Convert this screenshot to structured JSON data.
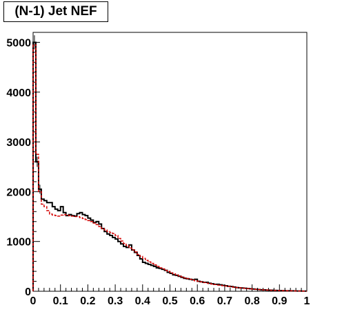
{
  "chart_data": {
    "type": "line",
    "title": "(N-1) Jet NEF",
    "xlabel": "",
    "ylabel": "",
    "xlim": [
      0,
      1
    ],
    "ylim": [
      0,
      5200
    ],
    "grid": false,
    "x_ticks": [
      "0",
      "0.1",
      "0.2",
      "0.3",
      "0.4",
      "0.5",
      "0.6",
      "0.7",
      "0.8",
      "0.9",
      "1"
    ],
    "y_ticks": [
      "0",
      "1000",
      "2000",
      "3000",
      "4000",
      "5000"
    ],
    "bin_width": 0.01,
    "series": [
      {
        "color": "#000000",
        "style": "solid",
        "values": [
          5000,
          2600,
          2050,
          1850,
          1820,
          1780,
          1780,
          1700,
          1650,
          1620,
          1700,
          1580,
          1520,
          1540,
          1520,
          1510,
          1560,
          1580,
          1540,
          1520,
          1470,
          1430,
          1380,
          1400,
          1350,
          1260,
          1200,
          1150,
          1120,
          1080,
          1050,
          1000,
          950,
          900,
          880,
          930,
          830,
          780,
          720,
          650,
          580,
          560,
          540,
          520,
          500,
          470,
          460,
          440,
          420,
          380,
          360,
          330,
          320,
          300,
          280,
          260,
          250,
          240,
          230,
          240,
          200,
          190,
          180,
          180,
          160,
          150,
          140,
          140,
          130,
          120,
          110,
          100,
          95,
          85,
          75,
          70,
          65,
          60,
          55,
          50,
          45,
          40,
          35,
          30,
          28,
          25,
          22,
          20,
          18,
          16,
          14,
          12,
          10,
          10,
          8,
          7,
          6,
          5,
          4,
          3
        ]
      },
      {
        "color": "#d40000",
        "style": "dashed",
        "values": [
          4950,
          2750,
          2000,
          1750,
          1700,
          1620,
          1550,
          1530,
          1520,
          1510,
          1530,
          1540,
          1530,
          1520,
          1510,
          1500,
          1500,
          1480,
          1460,
          1440,
          1420,
          1400,
          1370,
          1340,
          1300,
          1260,
          1230,
          1200,
          1180,
          1160,
          1120,
          1060,
          1010,
          960,
          920,
          870,
          830,
          790,
          740,
          700,
          660,
          620,
          590,
          560,
          530,
          500,
          470,
          450,
          420,
          400,
          370,
          350,
          330,
          310,
          290,
          270,
          255,
          240,
          225,
          210,
          200,
          190,
          175,
          165,
          155,
          145,
          135,
          125,
          120,
          112,
          105,
          98,
          90,
          82,
          75,
          70,
          64,
          58,
          53,
          48,
          43,
          38,
          34,
          30,
          27,
          24,
          21,
          19,
          17,
          15,
          13,
          11,
          10,
          9,
          8,
          7,
          6,
          5,
          4,
          3
        ]
      }
    ]
  }
}
